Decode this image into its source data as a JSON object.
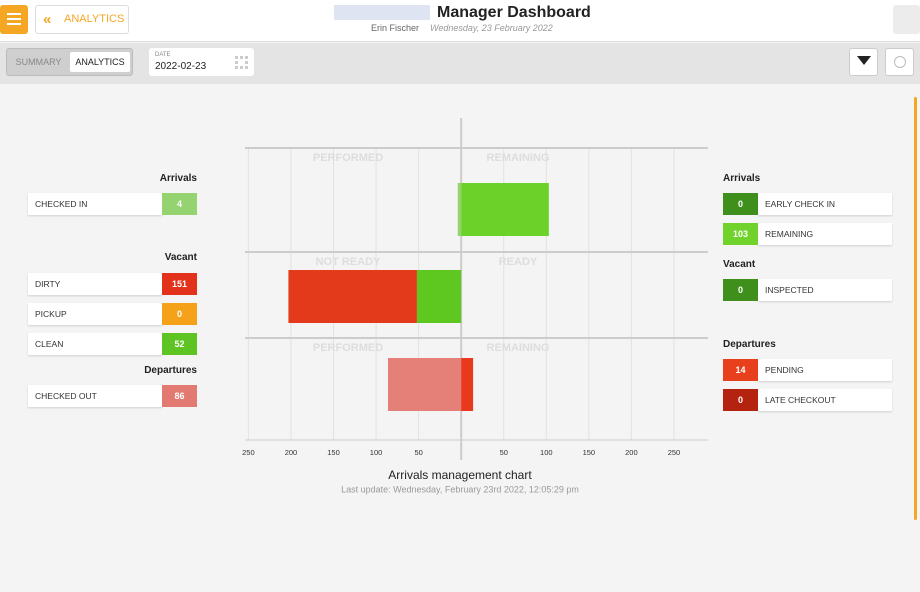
{
  "header": {
    "back_label": "ANALYTICS",
    "title": "Manager Dashboard",
    "user": "Erin Fischer",
    "date": "Wednesday, 23 February 2022"
  },
  "toolbar": {
    "tabs": [
      "SUMMARY",
      "ANALYTICS"
    ],
    "date_label": "DATE",
    "date_value": "2022-02-23"
  },
  "left_panel": [
    {
      "title": "Arrivals",
      "items": [
        {
          "label": "CHECKED IN",
          "value": 4,
          "color": "#95d270"
        }
      ]
    },
    {
      "title": "Vacant",
      "items": [
        {
          "label": "DIRTY",
          "value": 151,
          "color": "#e2321b"
        },
        {
          "label": "PICKUP",
          "value": 0,
          "color": "#f5a11a"
        },
        {
          "label": "CLEAN",
          "value": 52,
          "color": "#5ec424"
        }
      ]
    },
    {
      "title": "Departures",
      "items": [
        {
          "label": "CHECKED OUT",
          "value": 86,
          "color": "#e27a72"
        }
      ]
    }
  ],
  "right_panel": [
    {
      "title": "Arrivals",
      "items": [
        {
          "label": "EARLY CHECK IN",
          "value": 0,
          "color": "#3f8f1c"
        },
        {
          "label": "REMAINING",
          "value": 103,
          "color": "#71d22c"
        }
      ]
    },
    {
      "title": "Vacant",
      "items": [
        {
          "label": "INSPECTED",
          "value": 0,
          "color": "#3f8f1c"
        }
      ]
    },
    {
      "title": "Departures",
      "items": [
        {
          "label": "PENDING",
          "value": 14,
          "color": "#e8401c"
        },
        {
          "label": "LATE CHECKOUT",
          "value": 0,
          "color": "#b3230f"
        }
      ]
    }
  ],
  "chart": {
    "type": "bar",
    "title": "Arrivals management chart",
    "subtitle": "Last update: Wednesday, February 23rd 2022, 12:05:29 pm",
    "xlim": [
      -254,
      290
    ],
    "xticks": [
      {
        "value": -250,
        "label": "250"
      },
      {
        "value": -200,
        "label": "200"
      },
      {
        "value": -150,
        "label": "150"
      },
      {
        "value": -100,
        "label": "100"
      },
      {
        "value": -50,
        "label": "50"
      },
      50,
      100,
      150,
      200,
      250
    ],
    "rows": [
      {
        "left_label": "PERFORMED",
        "right_label": "REMAINING",
        "left": [
          {
            "value": 4,
            "color": "#95d270"
          }
        ],
        "right": [
          {
            "value": 103,
            "color": "#6cd22a"
          }
        ]
      },
      {
        "left_label": "NOT READY",
        "right_label": "READY",
        "left": [
          {
            "value": 52,
            "color": "#5ec820"
          },
          {
            "value": 151,
            "color": "#e23a1a"
          }
        ],
        "right": []
      },
      {
        "left_label": "PERFORMED",
        "right_label": "REMAINING",
        "left": [
          {
            "value": 86,
            "color": "#e58078"
          }
        ],
        "right": [
          {
            "value": 14,
            "color": "#e8391e"
          }
        ]
      }
    ]
  }
}
